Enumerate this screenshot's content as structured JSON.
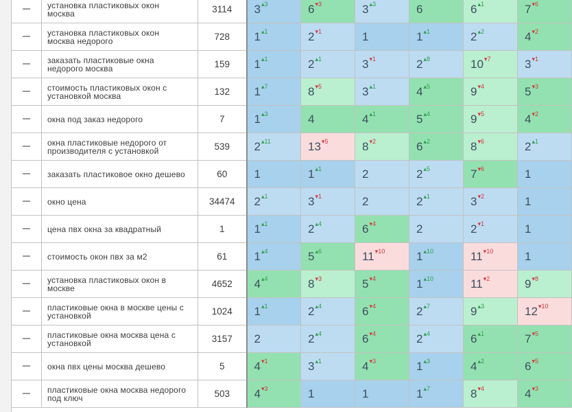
{
  "colors": {
    "blue": "#a7d1ec",
    "light_blue": "#bddcf2",
    "green": "#93e1b0",
    "light_green": "#baefcf",
    "pink": "#fbdcdd",
    "delta_up": "#2e9d4d",
    "delta_down": "#d2363c"
  },
  "rows": [
    {
      "keyword": "установка пластиковых окон москва",
      "freq": "3114",
      "cells": [
        {
          "pos": "3",
          "delta": "3",
          "dir": "up",
          "bg": "b-blue"
        },
        {
          "pos": "6",
          "delta": "3",
          "dir": "down",
          "bg": "b-green"
        },
        {
          "pos": "3",
          "delta": "3",
          "dir": "up",
          "bg": "b-lblue"
        },
        {
          "pos": "6",
          "delta": "",
          "dir": "",
          "bg": "b-green"
        },
        {
          "pos": "6",
          "delta": "1",
          "dir": "up",
          "bg": "b-lgreen"
        },
        {
          "pos": "7",
          "delta": "6",
          "dir": "down",
          "bg": "b-green"
        }
      ]
    },
    {
      "keyword": "установка пластиковых окон москва недорого",
      "freq": "728",
      "cells": [
        {
          "pos": "1",
          "delta": "1",
          "dir": "up",
          "bg": "b-blue"
        },
        {
          "pos": "2",
          "delta": "1",
          "dir": "down",
          "bg": "b-lblue"
        },
        {
          "pos": "1",
          "delta": "",
          "dir": "",
          "bg": "b-blue"
        },
        {
          "pos": "1",
          "delta": "1",
          "dir": "up",
          "bg": "b-blue"
        },
        {
          "pos": "2",
          "delta": "2",
          "dir": "up",
          "bg": "b-lblue"
        },
        {
          "pos": "4",
          "delta": "2",
          "dir": "down",
          "bg": "b-green"
        }
      ]
    },
    {
      "keyword": "заказать пластиковые окна недорого москва",
      "freq": "159",
      "cells": [
        {
          "pos": "1",
          "delta": "1",
          "dir": "up",
          "bg": "b-blue"
        },
        {
          "pos": "2",
          "delta": "1",
          "dir": "up",
          "bg": "b-lblue"
        },
        {
          "pos": "3",
          "delta": "1",
          "dir": "down",
          "bg": "b-lblue"
        },
        {
          "pos": "2",
          "delta": "8",
          "dir": "up",
          "bg": "b-lblue"
        },
        {
          "pos": "10",
          "delta": "7",
          "dir": "down",
          "bg": "b-lgreen"
        },
        {
          "pos": "3",
          "delta": "1",
          "dir": "down",
          "bg": "b-lblue"
        }
      ]
    },
    {
      "keyword": "стоимость пластиковых окон с установкой москва",
      "freq": "132",
      "cells": [
        {
          "pos": "1",
          "delta": "7",
          "dir": "up",
          "bg": "b-blue"
        },
        {
          "pos": "8",
          "delta": "5",
          "dir": "down",
          "bg": "b-lgreen"
        },
        {
          "pos": "3",
          "delta": "1",
          "dir": "up",
          "bg": "b-lblue"
        },
        {
          "pos": "4",
          "delta": "5",
          "dir": "up",
          "bg": "b-green"
        },
        {
          "pos": "9",
          "delta": "4",
          "dir": "down",
          "bg": "b-lgreen"
        },
        {
          "pos": "5",
          "delta": "3",
          "dir": "down",
          "bg": "b-green"
        }
      ]
    },
    {
      "keyword": "окна под заказ недорого",
      "freq": "7",
      "cells": [
        {
          "pos": "1",
          "delta": "3",
          "dir": "up",
          "bg": "b-blue"
        },
        {
          "pos": "4",
          "delta": "",
          "dir": "",
          "bg": "b-green"
        },
        {
          "pos": "4",
          "delta": "1",
          "dir": "up",
          "bg": "b-green"
        },
        {
          "pos": "5",
          "delta": "4",
          "dir": "up",
          "bg": "b-green"
        },
        {
          "pos": "9",
          "delta": "5",
          "dir": "down",
          "bg": "b-lgreen"
        },
        {
          "pos": "4",
          "delta": "2",
          "dir": "down",
          "bg": "b-green"
        }
      ]
    },
    {
      "keyword": "окна пластиковые недорого от производителя с установкой",
      "freq": "539",
      "cells": [
        {
          "pos": "2",
          "delta": "11",
          "dir": "up",
          "bg": "b-lblue"
        },
        {
          "pos": "13",
          "delta": "5",
          "dir": "down",
          "bg": "b-pink"
        },
        {
          "pos": "8",
          "delta": "2",
          "dir": "down",
          "bg": "b-lgreen"
        },
        {
          "pos": "6",
          "delta": "2",
          "dir": "up",
          "bg": "b-green"
        },
        {
          "pos": "8",
          "delta": "6",
          "dir": "down",
          "bg": "b-lgreen"
        },
        {
          "pos": "2",
          "delta": "1",
          "dir": "up",
          "bg": "b-lblue"
        }
      ]
    },
    {
      "keyword": "заказать пластиковое окно дешево",
      "freq": "60",
      "cells": [
        {
          "pos": "1",
          "delta": "",
          "dir": "",
          "bg": "b-blue"
        },
        {
          "pos": "1",
          "delta": "1",
          "dir": "up",
          "bg": "b-blue"
        },
        {
          "pos": "2",
          "delta": "",
          "dir": "",
          "bg": "b-lblue"
        },
        {
          "pos": "2",
          "delta": "5",
          "dir": "up",
          "bg": "b-lblue"
        },
        {
          "pos": "7",
          "delta": "6",
          "dir": "down",
          "bg": "b-green"
        },
        {
          "pos": "1",
          "delta": "",
          "dir": "",
          "bg": "b-blue"
        }
      ]
    },
    {
      "keyword": "окно цена",
      "freq": "34474",
      "cells": [
        {
          "pos": "2",
          "delta": "1",
          "dir": "up",
          "bg": "b-lblue"
        },
        {
          "pos": "3",
          "delta": "1",
          "dir": "down",
          "bg": "b-lblue"
        },
        {
          "pos": "2",
          "delta": "",
          "dir": "",
          "bg": "b-lblue"
        },
        {
          "pos": "2",
          "delta": "1",
          "dir": "up",
          "bg": "b-lblue"
        },
        {
          "pos": "3",
          "delta": "2",
          "dir": "down",
          "bg": "b-lblue"
        },
        {
          "pos": "1",
          "delta": "",
          "dir": "",
          "bg": "b-blue"
        }
      ]
    },
    {
      "keyword": "цена пвх окна за квадратный",
      "freq": "1",
      "cells": [
        {
          "pos": "1",
          "delta": "1",
          "dir": "up",
          "bg": "b-blue"
        },
        {
          "pos": "2",
          "delta": "4",
          "dir": "up",
          "bg": "b-lblue"
        },
        {
          "pos": "6",
          "delta": "4",
          "dir": "down",
          "bg": "b-green"
        },
        {
          "pos": "2",
          "delta": "",
          "dir": "",
          "bg": "b-lblue"
        },
        {
          "pos": "2",
          "delta": "1",
          "dir": "down",
          "bg": "b-lblue"
        },
        {
          "pos": "1",
          "delta": "",
          "dir": "",
          "bg": "b-blue"
        }
      ]
    },
    {
      "keyword": "стоимость окон пвх за м2",
      "freq": "61",
      "cells": [
        {
          "pos": "1",
          "delta": "4",
          "dir": "up",
          "bg": "b-blue"
        },
        {
          "pos": "5",
          "delta": "6",
          "dir": "up",
          "bg": "b-green"
        },
        {
          "pos": "11",
          "delta": "10",
          "dir": "down",
          "bg": "b-pink"
        },
        {
          "pos": "1",
          "delta": "10",
          "dir": "up",
          "bg": "b-blue"
        },
        {
          "pos": "11",
          "delta": "10",
          "dir": "down",
          "bg": "b-pink"
        },
        {
          "pos": "1",
          "delta": "",
          "dir": "",
          "bg": "b-blue"
        }
      ]
    },
    {
      "keyword": "установка пластиковых окон в москве",
      "freq": "4652",
      "cells": [
        {
          "pos": "4",
          "delta": "4",
          "dir": "up",
          "bg": "b-green"
        },
        {
          "pos": "8",
          "delta": "3",
          "dir": "down",
          "bg": "b-lgreen"
        },
        {
          "pos": "5",
          "delta": "4",
          "dir": "down",
          "bg": "b-green"
        },
        {
          "pos": "1",
          "delta": "10",
          "dir": "up",
          "bg": "b-blue"
        },
        {
          "pos": "11",
          "delta": "2",
          "dir": "down",
          "bg": "b-pink"
        },
        {
          "pos": "9",
          "delta": "8",
          "dir": "down",
          "bg": "b-lgreen"
        }
      ]
    },
    {
      "keyword": "пластиковые окна в москве цены с установкой",
      "freq": "1024",
      "cells": [
        {
          "pos": "1",
          "delta": "1",
          "dir": "up",
          "bg": "b-blue"
        },
        {
          "pos": "2",
          "delta": "4",
          "dir": "up",
          "bg": "b-lblue"
        },
        {
          "pos": "6",
          "delta": "4",
          "dir": "down",
          "bg": "b-green"
        },
        {
          "pos": "2",
          "delta": "7",
          "dir": "up",
          "bg": "b-lblue"
        },
        {
          "pos": "9",
          "delta": "3",
          "dir": "up",
          "bg": "b-lgreen"
        },
        {
          "pos": "12",
          "delta": "10",
          "dir": "down",
          "bg": "b-pink"
        }
      ]
    },
    {
      "keyword": "пластиковые окна москва цена с установкой",
      "freq": "3157",
      "cells": [
        {
          "pos": "2",
          "delta": "",
          "dir": "",
          "bg": "b-lblue"
        },
        {
          "pos": "2",
          "delta": "4",
          "dir": "up",
          "bg": "b-lblue"
        },
        {
          "pos": "6",
          "delta": "4",
          "dir": "down",
          "bg": "b-green"
        },
        {
          "pos": "2",
          "delta": "4",
          "dir": "up",
          "bg": "b-lblue"
        },
        {
          "pos": "6",
          "delta": "1",
          "dir": "up",
          "bg": "b-green"
        },
        {
          "pos": "7",
          "delta": "5",
          "dir": "down",
          "bg": "b-green"
        }
      ]
    },
    {
      "keyword": "окна пвх цены москва дешево",
      "freq": "5",
      "cells": [
        {
          "pos": "4",
          "delta": "1",
          "dir": "down",
          "bg": "b-green"
        },
        {
          "pos": "3",
          "delta": "1",
          "dir": "up",
          "bg": "b-lblue"
        },
        {
          "pos": "4",
          "delta": "3",
          "dir": "down",
          "bg": "b-green"
        },
        {
          "pos": "1",
          "delta": "3",
          "dir": "up",
          "bg": "b-blue"
        },
        {
          "pos": "4",
          "delta": "2",
          "dir": "up",
          "bg": "b-green"
        },
        {
          "pos": "6",
          "delta": "5",
          "dir": "down",
          "bg": "b-green"
        }
      ]
    },
    {
      "keyword": "пластиковые окна москва недорого под ключ",
      "freq": "503",
      "cells": [
        {
          "pos": "4",
          "delta": "3",
          "dir": "down",
          "bg": "b-green"
        },
        {
          "pos": "1",
          "delta": "",
          "dir": "",
          "bg": "b-blue"
        },
        {
          "pos": "1",
          "delta": "",
          "dir": "",
          "bg": "b-blue"
        },
        {
          "pos": "1",
          "delta": "7",
          "dir": "up",
          "bg": "b-blue"
        },
        {
          "pos": "8",
          "delta": "4",
          "dir": "down",
          "bg": "b-lgreen"
        },
        {
          "pos": "4",
          "delta": "3",
          "dir": "down",
          "bg": "b-green"
        }
      ]
    }
  ]
}
